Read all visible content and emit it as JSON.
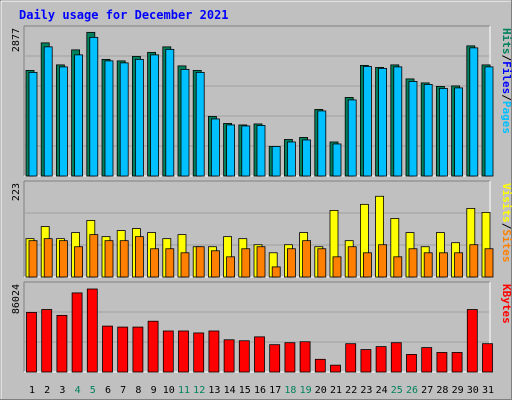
{
  "chart_data": {
    "type": "bar",
    "title": "Daily usage for December 2021",
    "categories": [
      "1",
      "2",
      "3",
      "4",
      "5",
      "6",
      "7",
      "8",
      "9",
      "10",
      "11",
      "12",
      "13",
      "14",
      "15",
      "16",
      "17",
      "18",
      "19",
      "20",
      "21",
      "22",
      "23",
      "24",
      "25",
      "26",
      "27",
      "28",
      "29",
      "30",
      "31"
    ],
    "weekend_days": [
      "4",
      "5",
      "11",
      "12",
      "18",
      "19",
      "25",
      "26"
    ],
    "colors": {
      "hits": "#00805c",
      "files": "#00c0ff",
      "visits": "#ffff00",
      "sites": "#ff8000",
      "kbytes": "#ff0000",
      "weekday_label": "#000000",
      "weekend_label": "#00805c",
      "title": "#0000ff"
    },
    "panels": [
      {
        "id": "top",
        "ymax_label": "2877",
        "ylim": [
          0,
          2877
        ],
        "label_parts": [
          {
            "text": "Hits",
            "color": "#00805c"
          },
          {
            "text": "/",
            "color": "#000000"
          },
          {
            "text": "Files",
            "color": "#0000ff"
          },
          {
            "text": "/",
            "color": "#000000"
          },
          {
            "text": "Pages",
            "color": "#00c0ff"
          }
        ],
        "series": [
          {
            "name": "Hits",
            "values": [
              2110,
              2660,
              2220,
              2520,
              2870,
              2330,
              2300,
              2390,
              2470,
              2580,
              2200,
              2110,
              1190,
              1050,
              1020,
              1040,
              590,
              730,
              770,
              1330,
              680,
              1570,
              2210,
              2170,
              2220,
              1940,
              1860,
              1790,
              1800,
              2600,
              2220
            ]
          },
          {
            "name": "Files",
            "values": [
              2070,
              2580,
              2180,
              2420,
              2770,
              2300,
              2260,
              2330,
              2420,
              2530,
              2130,
              2070,
              1140,
              1020,
              1000,
              1010,
              590,
              680,
              720,
              1300,
              640,
              1520,
              2190,
              2150,
              2180,
              1890,
              1830,
              1750,
              1760,
              2560,
              2180
            ]
          }
        ]
      },
      {
        "id": "mid",
        "ymax_label": "223",
        "ylim": [
          0,
          223
        ],
        "label_parts": [
          {
            "text": "Visits",
            "color": "#ffff00"
          },
          {
            "text": "/",
            "color": "#000000"
          },
          {
            "text": "Sites",
            "color": "#ff8000"
          }
        ],
        "series": [
          {
            "name": "Visits",
            "values": [
              95,
              125,
              95,
              110,
              140,
              100,
              115,
              120,
              110,
              95,
              105,
              75,
              75,
              100,
              95,
              80,
              60,
              80,
              110,
              75,
              165,
              90,
              180,
              200,
              145,
              110,
              75,
              110,
              85,
              170,
              160
            ]
          },
          {
            "name": "Sites",
            "values": [
              90,
              95,
              90,
              75,
              105,
              90,
              90,
              100,
              70,
              70,
              60,
              75,
              65,
              50,
              70,
              75,
              25,
              70,
              90,
              70,
              50,
              75,
              60,
              80,
              50,
              70,
              60,
              60,
              60,
              80,
              70
            ]
          }
        ]
      },
      {
        "id": "bot",
        "ymax_label": "86024",
        "ylim": [
          0,
          86024
        ],
        "label_parts": [
          {
            "text": "KBytes",
            "color": "#ff0000"
          }
        ],
        "series": [
          {
            "name": "KBytes",
            "values": [
              61000,
              64000,
              58000,
              81000,
              85000,
              47000,
              46000,
              46000,
              52000,
              42000,
              42000,
              40000,
              42000,
              33000,
              32000,
              36000,
              28000,
              30000,
              31000,
              13000,
              7000,
              29000,
              23000,
              26000,
              30000,
              18000,
              25000,
              20000,
              20000,
              64000,
              29000
            ]
          }
        ]
      }
    ]
  }
}
